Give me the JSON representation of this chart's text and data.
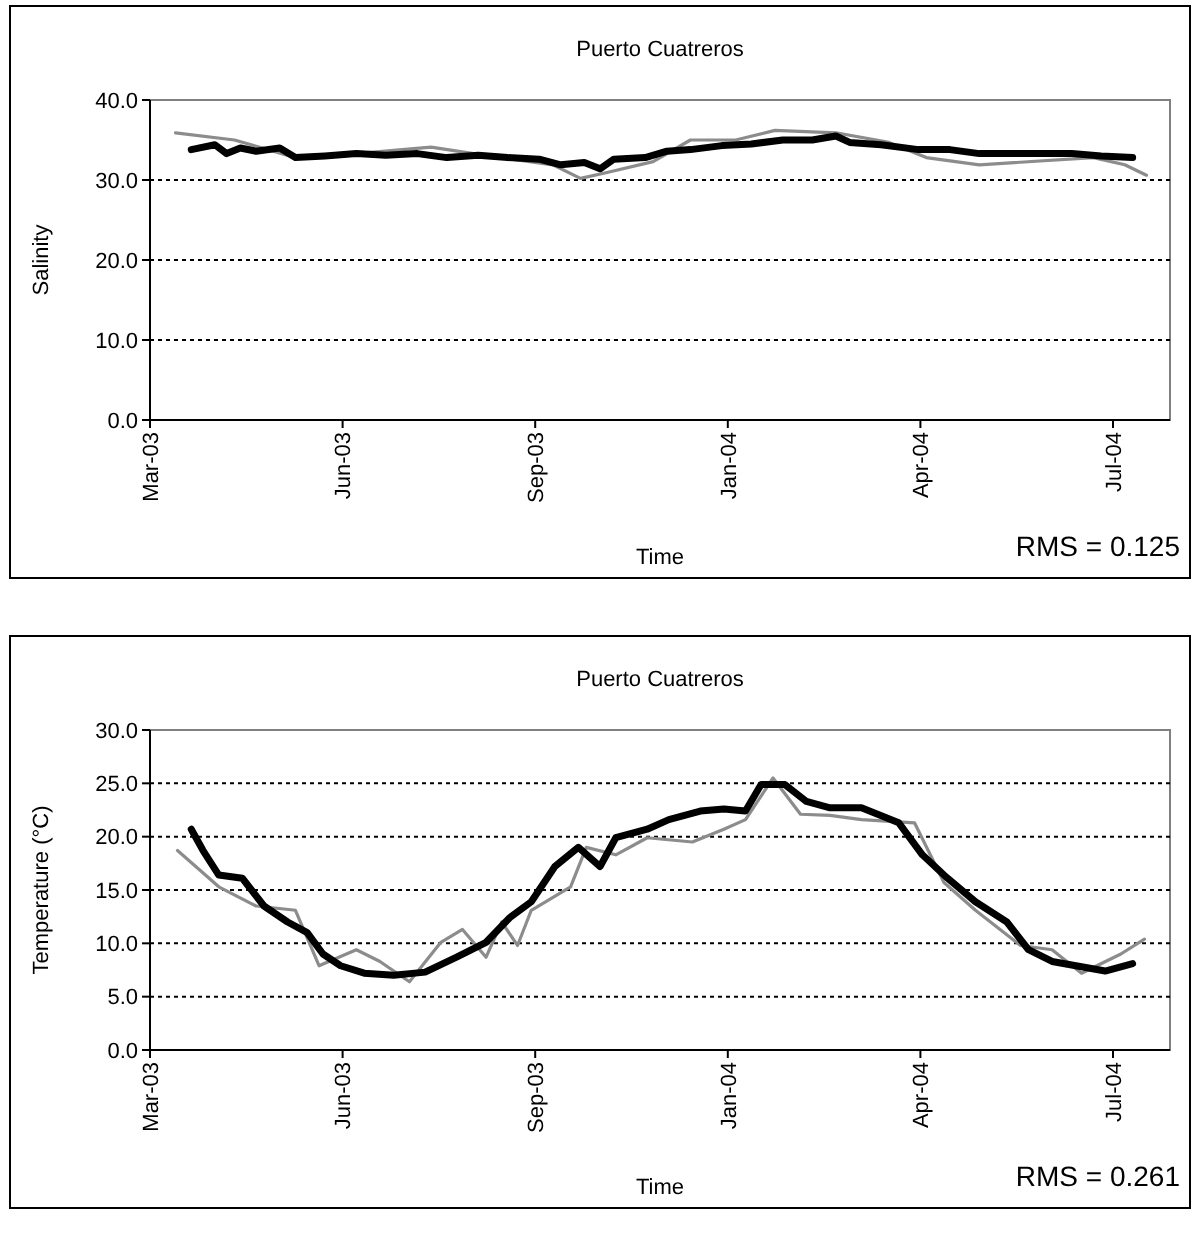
{
  "chart_data": [
    {
      "type": "line",
      "title": "Puerto Cuatreros",
      "xlabel": "Time",
      "ylabel": "Salinity",
      "annotations": [
        "RMS = 0.125"
      ],
      "grid": "y",
      "marker": "none",
      "line_style": "solid",
      "xlim": [
        "2003-03-14",
        "2004-08-14"
      ],
      "xticks": [
        {
          "value": "2003-03-14",
          "label": "Mar-03"
        },
        {
          "value": "2003-06-20",
          "label": "Jun-03"
        },
        {
          "value": "2003-09-26",
          "label": "Sep-03"
        },
        {
          "value": "2004-01-02",
          "label": "Jan-04"
        },
        {
          "value": "2004-04-09",
          "label": "Apr-04"
        },
        {
          "value": "2004-07-16",
          "label": "Jul-04"
        }
      ],
      "ylim": [
        0,
        40
      ],
      "yticks": [
        {
          "value": 0,
          "label": "0.0"
        },
        {
          "value": 10,
          "label": "10.0"
        },
        {
          "value": 20,
          "label": "20.0"
        },
        {
          "value": 30,
          "label": "30.0"
        },
        {
          "value": 40,
          "label": "40.0"
        }
      ],
      "series": [
        {
          "color": "#8c8c8c",
          "x": [
            "2003-03-27",
            "2003-04-26",
            "2003-05-27",
            "2003-06-27",
            "2003-08-04",
            "2003-09-08",
            "2003-10-05",
            "2003-10-19",
            "2003-11-01",
            "2003-11-25",
            "2003-12-14",
            "2004-01-06",
            "2004-01-26",
            "2004-02-26",
            "2004-03-24",
            "2004-04-12",
            "2004-05-09",
            "2004-07-06",
            "2004-07-22",
            "2004-08-02"
          ],
          "values": [
            35.9,
            35,
            32.8,
            33.3,
            34.1,
            32.8,
            31.9,
            30.2,
            30.9,
            32.3,
            35,
            35,
            36.2,
            35.9,
            34.7,
            32.8,
            31.9,
            32.8,
            31.9,
            30.6
          ]
        },
        {
          "color": "#000000",
          "x": [
            "2003-04-04",
            "2003-04-16",
            "2003-04-22",
            "2003-04-29",
            "2003-05-07",
            "2003-05-19",
            "2003-05-27",
            "2003-06-11",
            "2003-06-27",
            "2003-07-12",
            "2003-07-28",
            "2003-08-12",
            "2003-08-28",
            "2003-09-12",
            "2003-09-28",
            "2003-10-09",
            "2003-10-21",
            "2003-10-29",
            "2003-11-05",
            "2003-11-21",
            "2003-12-02",
            "2003-12-14",
            "2003-12-30",
            "2004-01-14",
            "2004-01-30",
            "2004-02-14",
            "2004-02-26",
            "2004-03-04",
            "2004-03-20",
            "2004-04-08",
            "2004-04-24",
            "2004-05-09",
            "2004-05-25",
            "2004-06-09",
            "2004-06-25",
            "2004-07-10",
            "2004-07-26"
          ],
          "values": [
            33.8,
            34.4,
            33.3,
            34,
            33.6,
            34,
            32.8,
            33,
            33.3,
            33.1,
            33.3,
            32.8,
            33.1,
            32.8,
            32.6,
            31.9,
            32.2,
            31.4,
            32.6,
            32.8,
            33.6,
            33.8,
            34.3,
            34.5,
            35,
            35,
            35.5,
            34.7,
            34.4,
            33.8,
            33.8,
            33.3,
            33.3,
            33.3,
            33.3,
            33,
            32.8
          ]
        }
      ]
    },
    {
      "type": "line",
      "title": "Puerto Cuatreros",
      "xlabel": "Time",
      "ylabel": "Temperature (°C)",
      "annotations": [
        "RMS = 0.261"
      ],
      "grid": "y",
      "marker": "none",
      "line_style": "solid",
      "xlim": [
        "2003-03-14",
        "2004-08-14"
      ],
      "xticks": [
        {
          "value": "2003-03-14",
          "label": "Mar-03"
        },
        {
          "value": "2003-06-20",
          "label": "Jun-03"
        },
        {
          "value": "2003-09-26",
          "label": "Sep-03"
        },
        {
          "value": "2004-01-02",
          "label": "Jan-04"
        },
        {
          "value": "2004-04-09",
          "label": "Apr-04"
        },
        {
          "value": "2004-07-16",
          "label": "Jul-04"
        }
      ],
      "ylim": [
        0,
        30
      ],
      "yticks": [
        {
          "value": 0,
          "label": "0.0"
        },
        {
          "value": 5,
          "label": "5.0"
        },
        {
          "value": 10,
          "label": "10.0"
        },
        {
          "value": 15,
          "label": "15.0"
        },
        {
          "value": 20,
          "label": "20.0"
        },
        {
          "value": 25,
          "label": "25.0"
        },
        {
          "value": 30,
          "label": "30.0"
        }
      ],
      "series": [
        {
          "color": "#8c8c8c",
          "x": [
            "2003-03-28",
            "2003-04-18",
            "2003-05-07",
            "2003-05-27",
            "2003-06-08",
            "2003-06-27",
            "2003-07-09",
            "2003-07-24",
            "2003-08-09",
            "2003-08-20",
            "2003-09-01",
            "2003-09-09",
            "2003-09-17",
            "2003-09-24",
            "2003-10-14",
            "2003-10-22",
            "2003-11-06",
            "2003-11-22",
            "2003-12-15",
            "2003-12-31",
            "2004-01-11",
            "2004-01-25",
            "2004-02-08",
            "2004-02-23",
            "2004-03-10",
            "2004-04-06",
            "2004-04-21",
            "2004-05-07",
            "2004-05-30",
            "2004-06-15",
            "2004-06-30",
            "2004-07-20",
            "2004-08-01"
          ],
          "values": [
            18.7,
            15.3,
            13.5,
            13.1,
            7.9,
            9.4,
            8.3,
            6.4,
            10.1,
            11.3,
            8.7,
            12,
            9.8,
            13.1,
            15.3,
            19,
            18.3,
            19.9,
            19.5,
            20.7,
            21.6,
            25.5,
            22.1,
            22,
            21.6,
            21.3,
            15.7,
            13.1,
            9.8,
            9.4,
            7.2,
            9,
            10.4
          ]
        },
        {
          "color": "#000000",
          "x": [
            "2003-04-04",
            "2003-04-10",
            "2003-04-18",
            "2003-04-30",
            "2003-05-11",
            "2003-05-23",
            "2003-06-02",
            "2003-06-10",
            "2003-06-19",
            "2003-07-01",
            "2003-07-16",
            "2003-08-01",
            "2003-08-17",
            "2003-09-01",
            "2003-09-13",
            "2003-09-24",
            "2003-10-06",
            "2003-10-18",
            "2003-10-29",
            "2003-11-06",
            "2003-11-22",
            "2003-12-03",
            "2003-12-19",
            "2003-12-31",
            "2004-01-11",
            "2004-01-19",
            "2004-01-31",
            "2004-02-11",
            "2004-02-23",
            "2004-03-10",
            "2004-03-29",
            "2004-04-10",
            "2004-04-21",
            "2004-05-07",
            "2004-05-23",
            "2004-06-03",
            "2004-06-15",
            "2004-06-30",
            "2004-07-12",
            "2004-07-26"
          ],
          "values": [
            20.7,
            18.7,
            16.4,
            16.1,
            13.5,
            12,
            11,
            9,
            7.9,
            7.2,
            7,
            7.3,
            8.7,
            10.1,
            12.4,
            13.9,
            17.2,
            19,
            17.2,
            19.9,
            20.7,
            21.6,
            22.4,
            22.6,
            22.4,
            24.9,
            24.9,
            23.3,
            22.7,
            22.7,
            21.3,
            18.3,
            16.4,
            13.9,
            12,
            9.4,
            8.3,
            7.8,
            7.4,
            8.1
          ]
        }
      ]
    }
  ]
}
